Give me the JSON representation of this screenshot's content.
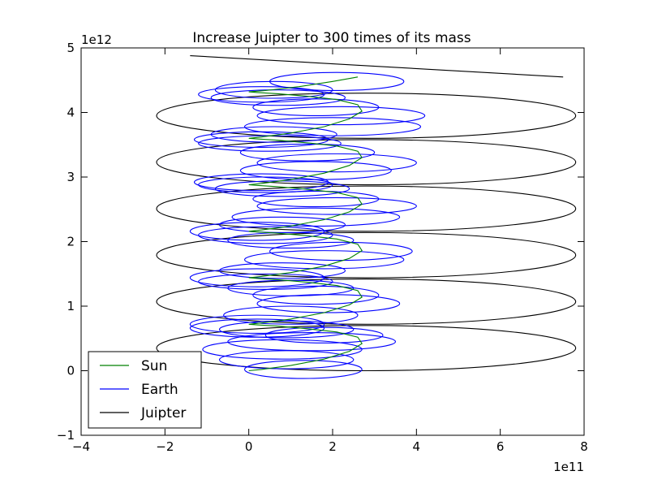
{
  "chart_data": {
    "type": "line",
    "title": "Increase Juipter to 300 times of its mass",
    "xlabel": "",
    "ylabel": "",
    "x_scale_label": "1e11",
    "y_scale_label": "1e12",
    "xlim": [
      -400000000000.0,
      800000000000.0
    ],
    "ylim": [
      -1000000000000.0,
      5000000000000.0
    ],
    "x_ticks": [
      -400000000000.0,
      -200000000000.0,
      0,
      200000000000.0,
      400000000000.0,
      600000000000.0,
      800000000000.0
    ],
    "x_tick_labels": [
      "−4",
      "−2",
      "0",
      "2",
      "4",
      "6",
      "8"
    ],
    "y_ticks": [
      -1000000000000.0,
      0,
      1000000000000.0,
      2000000000000.0,
      3000000000000.0,
      4000000000000.0,
      5000000000000.0
    ],
    "y_tick_labels": [
      "−1",
      "0",
      "1",
      "2",
      "3",
      "4",
      "5"
    ],
    "grid": false,
    "legend_position": "lower-left",
    "series": [
      {
        "name": "Sun",
        "color": "#008000",
        "x": [
          0,
          30000000000.0,
          100000000000.0,
          180000000000.0,
          240000000000.0,
          270000000000.0,
          260000000000.0,
          210000000000.0,
          140000000000.0,
          70000000000.0,
          20000000000.0,
          0,
          30000000000.0,
          100000000000.0,
          180000000000.0,
          240000000000.0,
          270000000000.0,
          260000000000.0,
          210000000000.0,
          140000000000.0,
          70000000000.0,
          20000000000.0,
          0,
          30000000000.0,
          100000000000.0,
          180000000000.0,
          240000000000.0,
          270000000000.0,
          260000000000.0,
          210000000000.0,
          140000000000.0,
          70000000000.0,
          20000000000.0,
          0,
          30000000000.0,
          100000000000.0,
          180000000000.0,
          240000000000.0,
          270000000000.0,
          260000000000.0,
          210000000000.0,
          140000000000.0,
          70000000000.0,
          20000000000.0,
          0,
          30000000000.0,
          100000000000.0,
          180000000000.0,
          240000000000.0,
          270000000000.0,
          260000000000.0,
          210000000000.0,
          140000000000.0,
          70000000000.0,
          20000000000.0,
          0,
          30000000000.0,
          100000000000.0,
          180000000000.0,
          240000000000.0,
          270000000000.0,
          260000000000.0,
          210000000000.0,
          140000000000.0,
          70000000000.0,
          20000000000.0,
          0,
          40000000000.0,
          120000000000.0,
          200000000000.0,
          260000000000.0
        ],
        "y": [
          0,
          20000000000.0,
          80000000000.0,
          180000000000.0,
          300000000000.0,
          420000000000.0,
          520000000000.0,
          600000000000.0,
          650000000000.0,
          690000000000.0,
          710000000000.0,
          720000000000.0,
          740000000000.0,
          800000000000.0,
          900000000000.0,
          1020000000000.0,
          1140000000000.0,
          1240000000000.0,
          1320000000000.0,
          1370000000000.0,
          1410000000000.0,
          1430000000000.0,
          1440000000000.0,
          1460000000000.0,
          1520000000000.0,
          1620000000000.0,
          1740000000000.0,
          1860000000000.0,
          1960000000000.0,
          2040000000000.0,
          2090000000000.0,
          2130000000000.0,
          2150000000000.0,
          2160000000000.0,
          2180000000000.0,
          2240000000000.0,
          2340000000000.0,
          2460000000000.0,
          2580000000000.0,
          2680000000000.0,
          2760000000000.0,
          2810000000000.0,
          2850000000000.0,
          2870000000000.0,
          2880000000000.0,
          2900000000000.0,
          2960000000000.0,
          3060000000000.0,
          3180000000000.0,
          3300000000000.0,
          3400000000000.0,
          3480000000000.0,
          3530000000000.0,
          3570000000000.0,
          3590000000000.0,
          3600000000000.0,
          3620000000000.0,
          3680000000000.0,
          3780000000000.0,
          3900000000000.0,
          4020000000000.0,
          4120000000000.0,
          4200000000000.0,
          4250000000000.0,
          4290000000000.0,
          4310000000000.0,
          4320000000000.0,
          4340000000000.0,
          4400000000000.0,
          4480000000000.0,
          4550000000000.0
        ]
      },
      {
        "name": "Earth",
        "color": "#0000ff",
        "loops": [
          [
            130000000000.0,
            20000000000.0,
            140000000000.0,
            140000000000.0
          ],
          [
            90000000000.0,
            170000000000.0,
            160000000000.0,
            140000000000.0
          ],
          [
            80000000000.0,
            330000000000.0,
            190000000000.0,
            150000000000.0
          ],
          [
            150000000000.0,
            450000000000.0,
            200000000000.0,
            140000000000.0
          ],
          [
            180000000000.0,
            550000000000.0,
            140000000000.0,
            120000000000.0
          ],
          [
            90000000000.0,
            640000000000.0,
            160000000000.0,
            130000000000.0
          ],
          [
            20000000000.0,
            660000000000.0,
            160000000000.0,
            140000000000.0
          ],
          [
            20000000000.0,
            720000000000.0,
            160000000000.0,
            140000000000.0
          ],
          [
            100000000000.0,
            860000000000.0,
            160000000000.0,
            140000000000.0
          ],
          [
            190000000000.0,
            1040000000000.0,
            170000000000.0,
            140000000000.0
          ],
          [
            160000000000.0,
            1170000000000.0,
            150000000000.0,
            140000000000.0
          ],
          [
            100000000000.0,
            1280000000000.0,
            150000000000.0,
            120000000000.0
          ],
          [
            40000000000.0,
            1380000000000.0,
            160000000000.0,
            120000000000.0
          ],
          [
            20000000000.0,
            1440000000000.0,
            160000000000.0,
            140000000000.0
          ],
          [
            80000000000.0,
            1550000000000.0,
            150000000000.0,
            120000000000.0
          ],
          [
            180000000000.0,
            1720000000000.0,
            190000000000.0,
            140000000000.0
          ],
          [
            220000000000.0,
            1850000000000.0,
            170000000000.0,
            140000000000.0
          ],
          [
            100000000000.0,
            2020000000000.0,
            150000000000.0,
            120000000000.0
          ],
          [
            40000000000.0,
            2100000000000.0,
            160000000000.0,
            130000000000.0
          ],
          [
            20000000000.0,
            2160000000000.0,
            160000000000.0,
            140000000000.0
          ],
          [
            80000000000.0,
            2260000000000.0,
            150000000000.0,
            120000000000.0
          ],
          [
            160000000000.0,
            2380000000000.0,
            200000000000.0,
            140000000000.0
          ],
          [
            210000000000.0,
            2550000000000.0,
            190000000000.0,
            130000000000.0
          ],
          [
            160000000000.0,
            2660000000000.0,
            150000000000.0,
            120000000000.0
          ],
          [
            80000000000.0,
            2820000000000.0,
            160000000000.0,
            120000000000.0
          ],
          [
            40000000000.0,
            2880000000000.0,
            160000000000.0,
            120000000000.0
          ],
          [
            30000000000.0,
            2920000000000.0,
            160000000000.0,
            130000000000.0
          ],
          [
            160000000000.0,
            3100000000000.0,
            180000000000.0,
            140000000000.0
          ],
          [
            210000000000.0,
            3220000000000.0,
            190000000000.0,
            140000000000.0
          ],
          [
            140000000000.0,
            3380000000000.0,
            160000000000.0,
            130000000000.0
          ],
          [
            50000000000.0,
            3520000000000.0,
            170000000000.0,
            120000000000.0
          ],
          [
            30000000000.0,
            3580000000000.0,
            160000000000.0,
            120000000000.0
          ],
          [
            60000000000.0,
            3660000000000.0,
            150000000000.0,
            120000000000.0
          ],
          [
            200000000000.0,
            3780000000000.0,
            210000000000.0,
            140000000000.0
          ],
          [
            220000000000.0,
            3950000000000.0,
            200000000000.0,
            140000000000.0
          ],
          [
            160000000000.0,
            4080000000000.0,
            150000000000.0,
            130000000000.0
          ],
          [
            70000000000.0,
            4230000000000.0,
            160000000000.0,
            120000000000.0
          ],
          [
            30000000000.0,
            4280000000000.0,
            150000000000.0,
            120000000000.0
          ],
          [
            60000000000.0,
            4350000000000.0,
            140000000000.0,
            130000000000.0
          ],
          [
            210000000000.0,
            4480000000000.0,
            160000000000.0,
            140000000000.0
          ]
        ]
      },
      {
        "name": "Juipter",
        "color": "#000000",
        "loops": [
          [
            280000000000.0,
            350000000000.0,
            500000000000.0,
            350000000000.0
          ],
          [
            280000000000.0,
            1070000000000.0,
            500000000000.0,
            350000000000.0
          ],
          [
            280000000000.0,
            1790000000000.0,
            500000000000.0,
            350000000000.0
          ],
          [
            280000000000.0,
            2510000000000.0,
            500000000000.0,
            350000000000.0
          ],
          [
            280000000000.0,
            3230000000000.0,
            500000000000.0,
            350000000000.0
          ],
          [
            280000000000.0,
            3950000000000.0,
            500000000000.0,
            350000000000.0
          ]
        ],
        "start": [
          780000000000.0,
          0
        ],
        "end": [
          -140000000000.0,
          4880000000000.0
        ]
      }
    ]
  }
}
